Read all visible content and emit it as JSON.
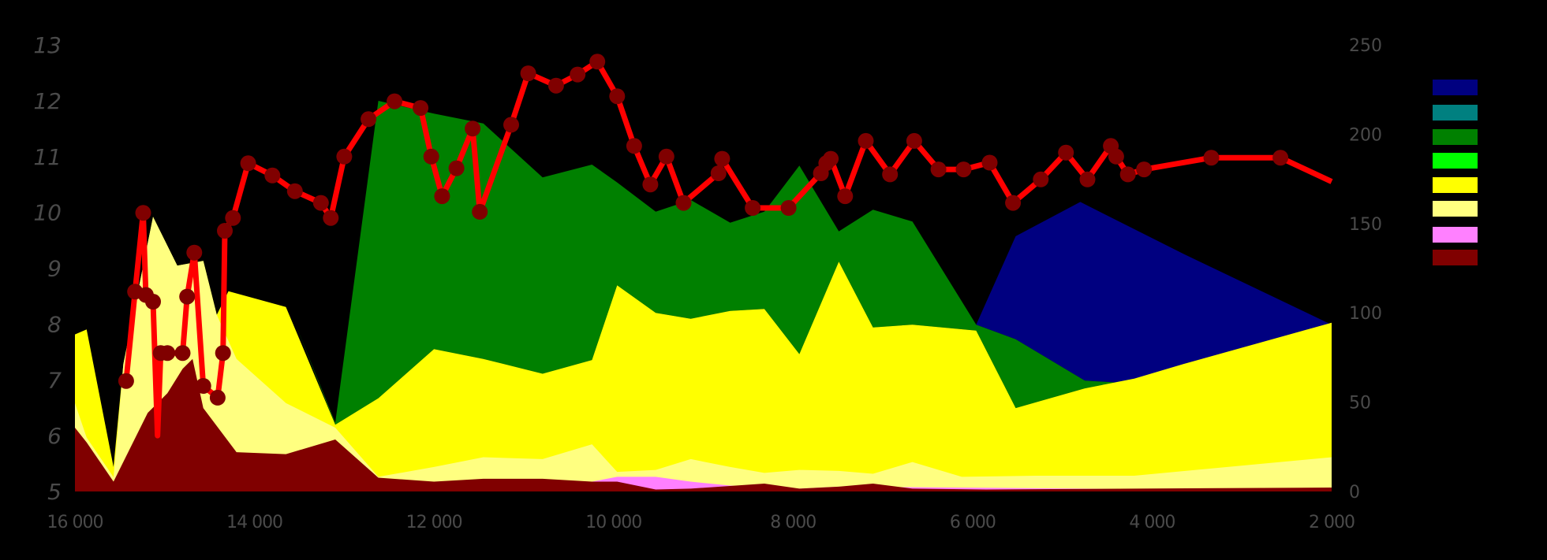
{
  "chart_data": {
    "type": "area",
    "title": "",
    "xlabel": "",
    "ylabel_left": "",
    "ylabel_right": "",
    "x_axis": {
      "min": 16000,
      "max": 2000,
      "reversed": true,
      "ticks": [
        16000,
        14000,
        12000,
        10000,
        8000,
        6000,
        4000,
        2000
      ],
      "tick_labels": [
        "16 000",
        "14 000",
        "12 000",
        "10 000",
        "8 000",
        "6 000",
        "4 000",
        "2 000"
      ]
    },
    "y_left": {
      "min": 5,
      "max": 13,
      "ticks": [
        5,
        6,
        7,
        8,
        9,
        10,
        11,
        12,
        13
      ]
    },
    "y_right": {
      "min": 0,
      "max": 250,
      "ticks": [
        0,
        50,
        100,
        150,
        200,
        250
      ]
    },
    "grid": false,
    "legend_position": "right",
    "legend": [
      {
        "color": "#000080",
        "label": ""
      },
      {
        "color": "#008080",
        "label": ""
      },
      {
        "color": "#008000",
        "label": ""
      },
      {
        "color": "#00ff00",
        "label": ""
      },
      {
        "color": "#ffff00",
        "label": ""
      },
      {
        "color": "#ffff80",
        "label": ""
      },
      {
        "color": "#ff80ff",
        "label": ""
      },
      {
        "color": "#800000",
        "label": ""
      }
    ],
    "stacked_areas_right_axis": [
      {
        "color": "#000080",
        "name": "navy",
        "top": [
          [
            5960,
            93.4
          ],
          [
            5520,
            142.9
          ],
          [
            4800,
            162.1
          ],
          [
            3650,
            133
          ],
          [
            2000,
            93.4
          ]
        ],
        "bottom": [
          [
            5960,
            93.4
          ],
          [
            5520,
            85.2
          ],
          [
            4750,
            62.1
          ],
          [
            4200,
            60.4
          ],
          [
            3650,
            71.4
          ],
          [
            2000,
            94.5
          ]
        ]
      },
      {
        "color": "#008000",
        "name": "green",
        "top": [
          [
            13540,
            93.4
          ],
          [
            13100,
            38.5
          ],
          [
            12620,
            218.7
          ],
          [
            12000,
            211.5
          ],
          [
            11450,
            206
          ],
          [
            10790,
            175.8
          ],
          [
            10240,
            183
          ],
          [
            9960,
            173
          ],
          [
            9530,
            156.6
          ],
          [
            9140,
            163.2
          ],
          [
            8700,
            150.5
          ],
          [
            8320,
            156.6
          ],
          [
            7930,
            182.4
          ],
          [
            7490,
            145.6
          ],
          [
            7110,
            157.7
          ],
          [
            6670,
            151.1
          ],
          [
            5960,
            93.4
          ],
          [
            5520,
            85.2
          ],
          [
            4750,
            62.1
          ],
          [
            4200,
            60.4
          ]
        ],
        "bottom": [
          [
            13540,
            93.4
          ],
          [
            13100,
            37.4
          ],
          [
            12620,
            52.2
          ],
          [
            12000,
            79.7
          ],
          [
            11450,
            74.2
          ],
          [
            10790,
            65.9
          ],
          [
            10240,
            73.6
          ],
          [
            9960,
            115.4
          ],
          [
            9530,
            100
          ],
          [
            9140,
            96.7
          ],
          [
            8700,
            101.1
          ],
          [
            8320,
            102.2
          ],
          [
            7930,
            76.9
          ],
          [
            7490,
            128.6
          ],
          [
            7110,
            91.8
          ],
          [
            6670,
            93.4
          ],
          [
            5960,
            90.1
          ],
          [
            5520,
            46.7
          ],
          [
            4750,
            57.7
          ],
          [
            4200,
            63.2
          ]
        ]
      },
      {
        "color": "#ffff00",
        "name": "yellow",
        "top": [
          [
            16000,
            87.9
          ],
          [
            15870,
            90.7
          ],
          [
            15570,
            13.7
          ],
          [
            15460,
            71.4
          ],
          [
            15130,
            153.8
          ],
          [
            14860,
            126.4
          ],
          [
            14570,
            129.1
          ],
          [
            14420,
            98.9
          ],
          [
            14290,
            112.1
          ],
          [
            13650,
            103.3
          ],
          [
            13100,
            37.4
          ],
          [
            12620,
            52.2
          ],
          [
            12000,
            79.7
          ],
          [
            11450,
            74.2
          ],
          [
            10790,
            65.9
          ],
          [
            10240,
            73.6
          ],
          [
            9960,
            115.4
          ],
          [
            9530,
            100
          ],
          [
            9140,
            96.7
          ],
          [
            8700,
            101.1
          ],
          [
            8320,
            102.2
          ],
          [
            7930,
            76.9
          ],
          [
            7490,
            128.6
          ],
          [
            7110,
            91.8
          ],
          [
            6670,
            93.4
          ],
          [
            5960,
            90.1
          ],
          [
            5520,
            46.7
          ],
          [
            4750,
            57.7
          ],
          [
            4200,
            63.2
          ],
          [
            3650,
            71.4
          ],
          [
            2000,
            94.5
          ]
        ]
      },
      {
        "color": "#ffff80",
        "name": "pale-yellow",
        "top": [
          [
            16000,
            49.5
          ],
          [
            15870,
            30.2
          ],
          [
            15570,
            8
          ],
          [
            15460,
            71.4
          ],
          [
            15130,
            153.8
          ],
          [
            14860,
            126.4
          ],
          [
            14570,
            129.1
          ],
          [
            14420,
            98.9
          ],
          [
            14200,
            74.2
          ],
          [
            13650,
            49.5
          ],
          [
            13100,
            35.7
          ],
          [
            12620,
            8.2
          ],
          [
            12000,
            13.7
          ],
          [
            11450,
            19.2
          ],
          [
            10790,
            18.1
          ],
          [
            10240,
            26.4
          ],
          [
            9960,
            11
          ],
          [
            9530,
            12.1
          ],
          [
            9140,
            18.1
          ],
          [
            8700,
            13.7
          ],
          [
            8320,
            10.4
          ],
          [
            7930,
            12.1
          ],
          [
            7490,
            11.5
          ],
          [
            7110,
            9.9
          ],
          [
            6670,
            16.5
          ],
          [
            6120,
            8.2
          ],
          [
            5300,
            8.8
          ],
          [
            4750,
            8.8
          ],
          [
            4200,
            8.8
          ],
          [
            2000,
            19.2
          ]
        ]
      },
      {
        "color": "#ff80ff",
        "name": "pink",
        "top": [
          [
            16000,
            0
          ],
          [
            10240,
            5.5
          ],
          [
            9960,
            8.2
          ],
          [
            9530,
            8.2
          ],
          [
            9140,
            5.5
          ],
          [
            8700,
            3.3
          ],
          [
            8320,
            2.2
          ],
          [
            7930,
            1.6
          ],
          [
            7490,
            2.7
          ],
          [
            2000,
            0.5
          ]
        ]
      },
      {
        "color": "#800000",
        "name": "maroon",
        "top": [
          [
            16000,
            35.7
          ],
          [
            15870,
            27.5
          ],
          [
            15570,
            5.5
          ],
          [
            15190,
            44
          ],
          [
            14970,
            55
          ],
          [
            14800,
            68.7
          ],
          [
            14690,
            74.2
          ],
          [
            14570,
            46.7
          ],
          [
            14200,
            22
          ],
          [
            13650,
            20.9
          ],
          [
            13100,
            29.1
          ],
          [
            12620,
            7.7
          ],
          [
            12000,
            5.5
          ],
          [
            11450,
            7.1
          ],
          [
            10790,
            7.1
          ],
          [
            10240,
            5.5
          ],
          [
            9960,
            5.5
          ],
          [
            9530,
            1.1
          ],
          [
            9140,
            1.6
          ],
          [
            8320,
            4.4
          ],
          [
            7930,
            1.6
          ],
          [
            7490,
            2.7
          ],
          [
            7110,
            4.4
          ],
          [
            6670,
            1.6
          ],
          [
            5850,
            1.1
          ],
          [
            2000,
            2.2
          ]
        ]
      }
    ],
    "line_left_axis": {
      "color": "#ff0000",
      "marker_color": "#800000",
      "points": [
        [
          15430,
          6.98
        ],
        [
          15330,
          8.58
        ],
        [
          15240,
          9.99
        ],
        [
          15210,
          8.52
        ],
        [
          15130,
          8.4
        ],
        [
          15080,
          6.0
        ],
        [
          15045,
          7.48
        ],
        [
          14970,
          7.48
        ],
        [
          14800,
          7.48
        ],
        [
          14750,
          8.49
        ],
        [
          14670,
          9.28
        ],
        [
          14570,
          6.89
        ],
        [
          14410,
          6.68
        ],
        [
          14350,
          7.48
        ],
        [
          14330,
          9.67
        ],
        [
          14240,
          9.9
        ],
        [
          14070,
          10.88
        ],
        [
          13800,
          10.66
        ],
        [
          13550,
          10.38
        ],
        [
          13260,
          10.17
        ],
        [
          13150,
          9.9
        ],
        [
          13000,
          11.0
        ],
        [
          12730,
          11.67
        ],
        [
          12440,
          11.99
        ],
        [
          12150,
          11.87
        ],
        [
          12030,
          11.0
        ],
        [
          11910,
          10.29
        ],
        [
          11750,
          10.79
        ],
        [
          11570,
          11.5
        ],
        [
          11490,
          10.01
        ],
        [
          11140,
          11.57
        ],
        [
          10950,
          12.49
        ],
        [
          10640,
          12.27
        ],
        [
          10400,
          12.47
        ],
        [
          10180,
          12.7
        ],
        [
          9960,
          12.08
        ],
        [
          9770,
          11.19
        ],
        [
          9590,
          10.5
        ],
        [
          9410,
          11.0
        ],
        [
          9220,
          10.17
        ],
        [
          8830,
          10.7
        ],
        [
          8790,
          10.96
        ],
        [
          8450,
          10.08
        ],
        [
          8050,
          10.08
        ],
        [
          7690,
          10.7
        ],
        [
          7630,
          10.88
        ],
        [
          7580,
          10.96
        ],
        [
          7420,
          10.29
        ],
        [
          7190,
          11.28
        ],
        [
          6920,
          10.68
        ],
        [
          6650,
          11.28
        ],
        [
          6380,
          10.77
        ],
        [
          6100,
          10.77
        ],
        [
          5810,
          10.89
        ],
        [
          5550,
          10.17
        ],
        [
          5240,
          10.59
        ],
        [
          4960,
          11.07
        ],
        [
          4720,
          10.59
        ],
        [
          4460,
          11.19
        ],
        [
          4400,
          11.0
        ],
        [
          4270,
          10.68
        ],
        [
          4090,
          10.77
        ],
        [
          3340,
          10.98
        ],
        [
          2570,
          10.98
        ],
        [
          2000,
          10.55
        ]
      ],
      "markerless_indices": [
        5,
        64
      ]
    }
  }
}
